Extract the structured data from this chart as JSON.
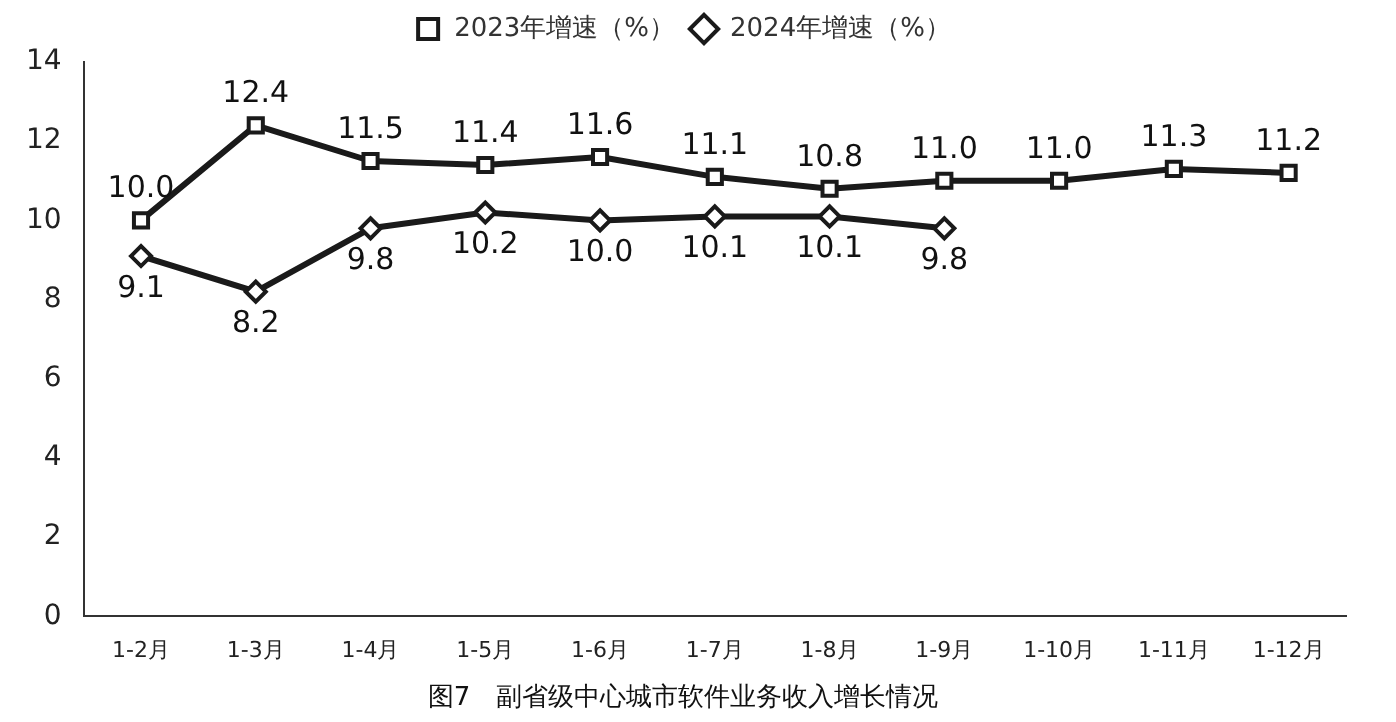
{
  "chart_data": {
    "type": "line",
    "title": "图7　副省级中心城市软件业务收入增长情况",
    "categories": [
      "1-2月",
      "1-3月",
      "1-4月",
      "1-5月",
      "1-6月",
      "1-7月",
      "1-8月",
      "1-9月",
      "1-10月",
      "1-11月",
      "1-12月"
    ],
    "series": [
      {
        "name": "2023年增速（%）",
        "color": "#1a1a1a",
        "marker": "square",
        "values": [
          10.0,
          12.4,
          11.5,
          11.4,
          11.6,
          11.1,
          10.8,
          11.0,
          11.0,
          11.3,
          11.2
        ],
        "value_labels": [
          "10.0",
          "12.4",
          "11.5",
          "11.4",
          "11.6",
          "11.1",
          "10.8",
          "11.0",
          "11.0",
          "11.3",
          "11.2"
        ]
      },
      {
        "name": "2024年增速（%）",
        "color": "#1a1a1a",
        "marker": "diamond",
        "values": [
          9.1,
          8.2,
          9.8,
          10.2,
          10.0,
          10.1,
          10.1,
          9.8,
          null,
          null,
          null
        ],
        "value_labels": [
          "9.1",
          "8.2",
          "9.8",
          "10.2",
          "10.0",
          "10.1",
          "10.1",
          "9.8",
          null,
          null,
          null
        ]
      }
    ],
    "ylim": [
      0,
      14
    ],
    "yticks": [
      0,
      2,
      4,
      6,
      8,
      10,
      12,
      14
    ],
    "grid": false,
    "legend": "top"
  }
}
